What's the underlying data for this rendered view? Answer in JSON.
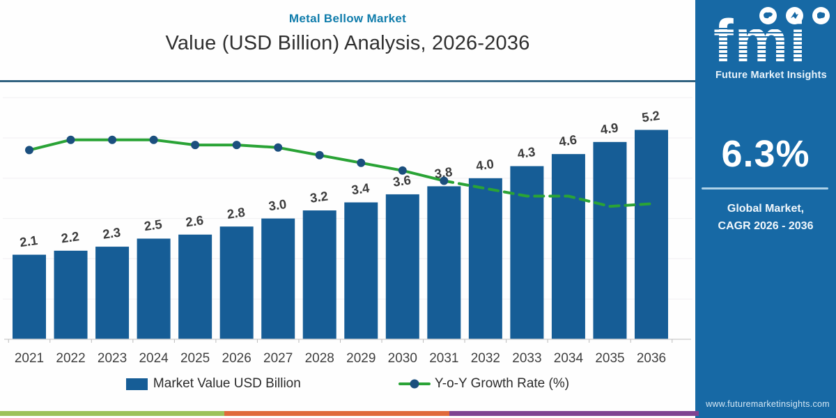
{
  "chart_data": {
    "type": "bar",
    "title": "Metal Bellow Market",
    "subtitle": "Value (USD Billion) Analysis, 2026-2036",
    "categories": [
      "2021",
      "2022",
      "2023",
      "2024",
      "2025",
      "2026",
      "2027",
      "2028",
      "2029",
      "2030",
      "2031",
      "2032",
      "2033",
      "2034",
      "2035",
      "2036"
    ],
    "series": [
      {
        "name": "Market Value USD Billion",
        "type": "bar",
        "color": "#165d96",
        "values": [
          2.1,
          2.2,
          2.3,
          2.5,
          2.6,
          2.8,
          3.0,
          3.2,
          3.4,
          3.6,
          3.8,
          4.0,
          4.3,
          4.6,
          4.9,
          5.2
        ],
        "data_labels_shown": true
      },
      {
        "name": "Y-o-Y Growth Rate (%)",
        "type": "line",
        "axis": "right",
        "color": "#2aa336",
        "marker_color": "#1b4f7e",
        "values_estimated_from_pixels": true,
        "values": [
          7.4,
          7.8,
          7.8,
          7.8,
          7.6,
          7.6,
          7.5,
          7.2,
          6.9,
          6.6,
          6.2,
          5.9,
          5.6,
          5.6,
          5.2,
          5.3
        ],
        "solid_with_markers_through": "2031",
        "dashed_no_markers_from": "2031"
      }
    ],
    "xlabel": "",
    "ylabel": "",
    "ylim": [
      0,
      6.35
    ],
    "y2lim": [
      0,
      10
    ],
    "grid": "horizontal, step 1.0, left axis (unlabeled)",
    "legend_position": "bottom"
  },
  "sidebar": {
    "logo_text": "fmi",
    "logo_subtext": "Future Market Insights",
    "logo_icon_names": [
      "globe-map-icon",
      "globe-compass-icon",
      "globe-location-icon"
    ],
    "cagr_value": "6.3%",
    "cagr_label_line1": "Global Market,",
    "cagr_label_line2": "CAGR 2026 - 2036",
    "website": "www.futuremarketinsights.com",
    "bg_color": "#1769a5"
  },
  "footer": {
    "stripe_colors": [
      "#9cc25a",
      "#e0693a",
      "#7f4391"
    ]
  }
}
